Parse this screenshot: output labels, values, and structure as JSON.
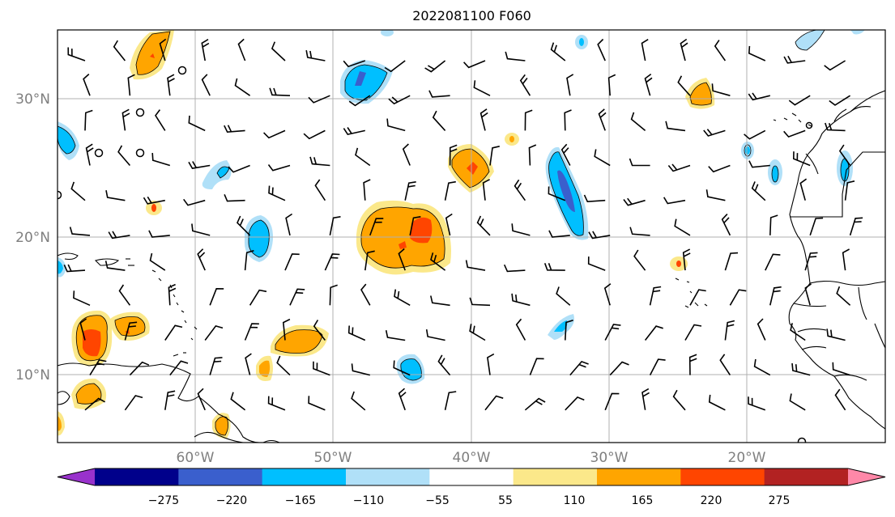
{
  "title": "2022081100 F060",
  "map": {
    "lat_labels": [
      "30°N",
      "20°N",
      "10°N"
    ],
    "lon_labels": [
      "60°W",
      "50°W",
      "40°W",
      "30°W",
      "20°W"
    ],
    "gridlines": true,
    "barbs": "wind barbs",
    "coastlines": true
  },
  "colorbar": {
    "extend": "both",
    "colors": [
      "#9932cc",
      "#00008b",
      "#3a5fcd",
      "#00bfff",
      "#b0e0f8",
      "#ffffff",
      "#fbe88a",
      "#ffa500",
      "#ff4500",
      "#b22222",
      "#ff88a8"
    ],
    "tick_labels": [
      "−275",
      "−220",
      "−165",
      "−110",
      "−55",
      "55",
      "110",
      "165",
      "220",
      "275"
    ]
  }
}
